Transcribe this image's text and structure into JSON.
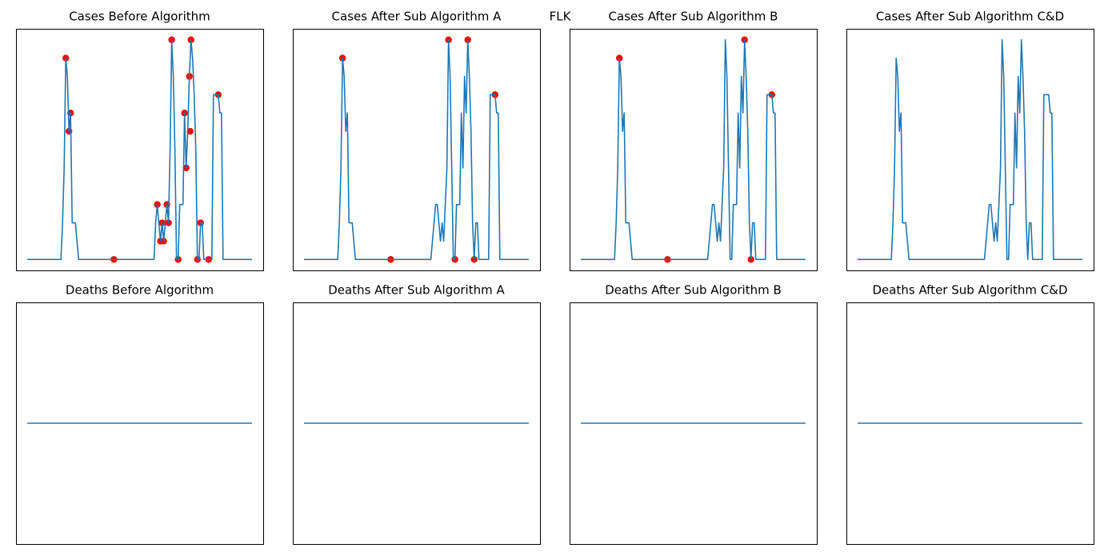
{
  "title": "FLK",
  "chart_data": [
    {
      "type": "line",
      "title": "Cases Before Algorithm",
      "xlim": [
        -7,
        147
      ],
      "ylim": [
        -0.6,
        12.6
      ],
      "x": [
        0,
        21,
        22,
        23,
        24,
        25,
        26,
        27,
        28,
        30,
        31,
        32,
        54,
        79,
        80,
        81,
        82,
        83,
        84,
        85,
        86,
        87,
        88,
        89,
        90,
        91,
        92,
        93,
        94,
        95,
        97,
        98,
        99,
        100,
        101,
        102,
        103,
        104,
        105,
        106,
        107,
        108,
        109,
        110,
        115,
        116,
        119,
        120,
        121,
        122,
        140
      ],
      "series": [
        {
          "color": "#1f77b4",
          "values": [
            0,
            0,
            2,
            5,
            11,
            10,
            7,
            8,
            2,
            2,
            1,
            0,
            0,
            0,
            2,
            3,
            2,
            1,
            2,
            1,
            2,
            3,
            2,
            6,
            12,
            10,
            6,
            0,
            0,
            3,
            3,
            8,
            5,
            7,
            10,
            12,
            11,
            9,
            6,
            0,
            0,
            2,
            2,
            0,
            0,
            9,
            9,
            8,
            8,
            0,
            0
          ]
        }
      ],
      "points": {
        "color": "#ff0000",
        "x": [
          24,
          26,
          27,
          54,
          81,
          84,
          83,
          85,
          87,
          88,
          90,
          94,
          98,
          99,
          101,
          101.5,
          102,
          106,
          108,
          113,
          119
        ],
        "values": [
          11,
          7,
          8,
          0,
          3,
          2,
          1,
          1,
          3,
          2,
          12,
          0,
          8,
          5,
          10,
          7,
          12,
          0,
          2,
          0,
          9
        ]
      }
    },
    {
      "type": "line",
      "title": "Cases After Sub Algorithm A",
      "xlim": [
        -7,
        147
      ],
      "ylim": [
        -0.6,
        12.6
      ],
      "x": [
        0,
        21,
        22,
        23,
        24,
        25,
        26,
        27,
        28,
        30,
        31,
        32,
        54,
        79,
        80,
        81,
        82,
        83,
        84,
        85,
        86,
        87,
        88,
        89,
        90,
        91,
        92,
        93,
        94,
        95,
        97,
        98,
        99,
        100,
        101,
        102,
        103,
        104,
        105,
        106,
        107,
        108,
        109,
        110,
        115,
        116,
        119,
        120,
        121,
        122,
        140
      ],
      "series": [
        {
          "color": "#1f77b4",
          "values": [
            0,
            0,
            2,
            5,
            11,
            10,
            7,
            8,
            2,
            2,
            1,
            0,
            0,
            0,
            1,
            2,
            3,
            3,
            2,
            1,
            2,
            1,
            3,
            5,
            12,
            10,
            5,
            0,
            0,
            3,
            3,
            8,
            5,
            10,
            8,
            12,
            10,
            7,
            2,
            0,
            2,
            2,
            0,
            0,
            0,
            9,
            9,
            8,
            8,
            0,
            0
          ]
        }
      ],
      "points": {
        "color": "#ff0000",
        "x": [
          24,
          54,
          90,
          94,
          102,
          106,
          119
        ],
        "values": [
          11,
          0,
          12,
          0,
          12,
          0,
          9
        ]
      }
    },
    {
      "type": "line",
      "title": "Cases After Sub Algorithm B",
      "xlim": [
        -7,
        147
      ],
      "ylim": [
        -0.6,
        12.6
      ],
      "x": [
        0,
        21,
        22,
        23,
        24,
        25,
        26,
        27,
        28,
        30,
        31,
        32,
        54,
        79,
        80,
        81,
        82,
        83,
        84,
        85,
        86,
        87,
        88,
        89,
        90,
        91,
        92,
        93,
        94,
        95,
        97,
        98,
        99,
        100,
        101,
        102,
        103,
        104,
        105,
        106,
        107,
        108,
        109,
        110,
        115,
        116,
        119,
        120,
        121,
        122,
        140
      ],
      "series": [
        {
          "color": "#1f77b4",
          "values": [
            0,
            0,
            2,
            5,
            11,
            10,
            7,
            8,
            2,
            2,
            1,
            0,
            0,
            0,
            1,
            2,
            3,
            3,
            2,
            1,
            2,
            1,
            3,
            5,
            12,
            10,
            5,
            0,
            0,
            3,
            3,
            8,
            5,
            10,
            8,
            12,
            10,
            7,
            2,
            0,
            2,
            2,
            0,
            0,
            0,
            9,
            9,
            8,
            8,
            0,
            0
          ]
        }
      ],
      "points": {
        "color": "#ff0000",
        "x": [
          24,
          54,
          102,
          106,
          119
        ],
        "values": [
          11,
          0,
          12,
          0,
          9
        ]
      }
    },
    {
      "type": "line",
      "title": "Cases After Sub Algorithm C&D",
      "xlim": [
        -7,
        147
      ],
      "ylim": [
        -0.6,
        12.6
      ],
      "x": [
        0,
        21,
        22,
        23,
        24,
        25,
        26,
        27,
        28,
        30,
        31,
        32,
        54,
        79,
        80,
        81,
        82,
        83,
        84,
        85,
        86,
        87,
        88,
        89,
        90,
        91,
        92,
        93,
        94,
        95,
        97,
        98,
        99,
        100,
        101,
        102,
        103,
        104,
        105,
        106,
        107,
        108,
        109,
        110,
        115,
        116,
        119,
        120,
        121,
        122,
        140
      ],
      "series": [
        {
          "color": "#1f77b4",
          "values": [
            0,
            0,
            2,
            5,
            11,
            10,
            7,
            8,
            2,
            2,
            1,
            0,
            0,
            0,
            1,
            2,
            3,
            3,
            2,
            1,
            2,
            1,
            3,
            5,
            12,
            10,
            5,
            0,
            0,
            3,
            3,
            8,
            5,
            10,
            8,
            12,
            10,
            7,
            2,
            0,
            2,
            2,
            0,
            0,
            0,
            9,
            9,
            8,
            8,
            0,
            0
          ]
        }
      ]
    },
    {
      "type": "line",
      "title": "Deaths Before Algorithm",
      "xlim": [
        -7,
        147
      ],
      "ylim": [
        -0.055,
        0.055
      ],
      "x": [
        0,
        140
      ],
      "series": [
        {
          "color": "#1f77b4",
          "values": [
            0,
            0
          ]
        }
      ]
    },
    {
      "type": "line",
      "title": "Deaths After Sub Algorithm A",
      "xlim": [
        -7,
        147
      ],
      "ylim": [
        -0.055,
        0.055
      ],
      "x": [
        0,
        140
      ],
      "series": [
        {
          "color": "#1f77b4",
          "values": [
            0,
            0
          ]
        }
      ]
    },
    {
      "type": "line",
      "title": "Deaths After Sub Algorithm B",
      "xlim": [
        -7,
        147
      ],
      "ylim": [
        -0.055,
        0.055
      ],
      "x": [
        0,
        140
      ],
      "series": [
        {
          "color": "#1f77b4",
          "values": [
            0,
            0
          ]
        }
      ]
    },
    {
      "type": "line",
      "title": "Deaths After Sub Algorithm C&D",
      "xlim": [
        -7,
        147
      ],
      "ylim": [
        -0.055,
        0.055
      ],
      "x": [
        0,
        140
      ],
      "series": [
        {
          "color": "#1f77b4",
          "values": [
            0,
            0
          ]
        }
      ]
    }
  ]
}
